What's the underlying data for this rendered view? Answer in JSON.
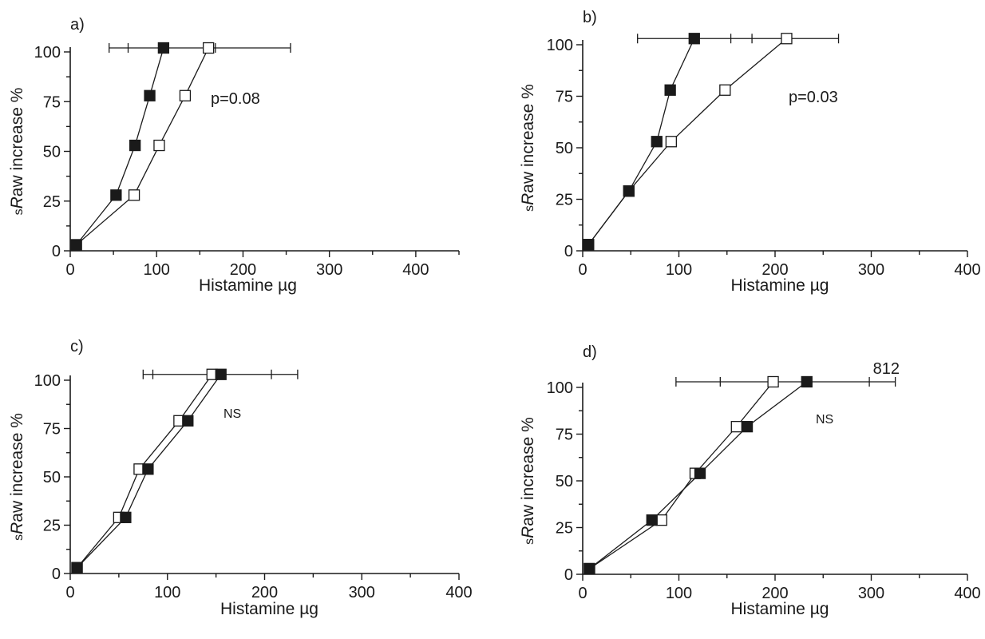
{
  "chart_data": [
    {
      "type": "line",
      "panel_label": "a)",
      "xlabel": "Histamine  µg",
      "ylabel": {
        "prefix": "s",
        "italic": "R",
        "suffix": "aw increase  %"
      },
      "xlim": [
        0,
        450
      ],
      "ylim": [
        0,
        100
      ],
      "x_ticks": [
        0,
        100,
        200,
        300,
        400
      ],
      "y_ticks": [
        0,
        25,
        50,
        75,
        100
      ],
      "annotation": "p=0.08",
      "series": [
        {
          "marker": "filled-square",
          "x": [
            7,
            53,
            75,
            92,
            108
          ],
          "y": [
            3,
            28,
            53,
            78,
            102
          ]
        },
        {
          "marker": "open-square",
          "x": [
            7,
            74,
            103,
            133,
            160
          ],
          "y": [
            3,
            28,
            53,
            78,
            102
          ]
        }
      ],
      "error_bars": [
        {
          "y": 102,
          "low": 45,
          "high": 255,
          "ticks": [
            67,
            168
          ]
        }
      ]
    },
    {
      "type": "line",
      "panel_label": "b)",
      "xlabel": "Histamine  µg",
      "ylabel": {
        "prefix": "s",
        "italic": "R",
        "suffix": "aw increase  %"
      },
      "xlim": [
        0,
        400
      ],
      "ylim": [
        0,
        100
      ],
      "x_ticks": [
        0,
        100,
        200,
        300,
        400
      ],
      "y_ticks": [
        0,
        25,
        50,
        75,
        100
      ],
      "annotation": "p=0.03",
      "series": [
        {
          "marker": "filled-square",
          "x": [
            6,
            48,
            77,
            91,
            116
          ],
          "y": [
            3,
            29,
            53,
            78,
            103
          ]
        },
        {
          "marker": "open-square",
          "x": [
            6,
            48,
            92,
            148,
            212
          ],
          "y": [
            3,
            29,
            53,
            78,
            103
          ]
        }
      ],
      "error_bars": [
        {
          "y": 103,
          "low": 57,
          "high": 266,
          "ticks": [
            154,
            176
          ]
        }
      ]
    },
    {
      "type": "line",
      "panel_label": "c)",
      "xlabel": "Histamine  µg",
      "ylabel": {
        "prefix": "s",
        "italic": "R",
        "suffix": "aw increase  %"
      },
      "xlim": [
        0,
        400
      ],
      "ylim": [
        0,
        100
      ],
      "x_ticks": [
        0,
        100,
        200,
        300,
        400
      ],
      "y_ticks": [
        0,
        25,
        50,
        75,
        100
      ],
      "annotation": "NS",
      "series": [
        {
          "marker": "filled-square",
          "x": [
            7,
            57,
            80,
            121,
            155
          ],
          "y": [
            3,
            29,
            54,
            79,
            103
          ]
        },
        {
          "marker": "open-square",
          "x": [
            7,
            50,
            71,
            112,
            146
          ],
          "y": [
            3,
            29,
            54,
            79,
            103
          ]
        }
      ],
      "error_bars": [
        {
          "y": 103,
          "low": 75,
          "high": 234,
          "ticks": [
            85,
            207
          ]
        }
      ]
    },
    {
      "type": "line",
      "panel_label": "d)",
      "xlabel": "Histamine  µg",
      "ylabel": {
        "prefix": "s",
        "italic": "R",
        "suffix": "aw increase  %"
      },
      "xlim": [
        0,
        400
      ],
      "ylim": [
        0,
        100
      ],
      "x_ticks": [
        0,
        100,
        200,
        300,
        400
      ],
      "y_ticks": [
        0,
        25,
        50,
        75,
        100
      ],
      "annotation": "NS",
      "series": [
        {
          "marker": "filled-square",
          "x": [
            7,
            72,
            122,
            171,
            233
          ],
          "y": [
            3,
            29,
            54,
            79,
            103
          ]
        },
        {
          "marker": "open-square",
          "x": [
            7,
            82,
            117,
            160,
            198
          ],
          "y": [
            3,
            29,
            54,
            79,
            103
          ]
        }
      ],
      "error_bars": [
        {
          "y": 103,
          "low": 97,
          "high": 325,
          "ticks": [
            143,
            298
          ]
        }
      ],
      "error_bar_label": "812"
    }
  ]
}
